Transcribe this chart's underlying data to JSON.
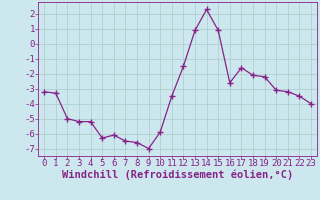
{
  "x": [
    0,
    1,
    2,
    3,
    4,
    5,
    6,
    7,
    8,
    9,
    10,
    11,
    12,
    13,
    14,
    15,
    16,
    17,
    18,
    19,
    20,
    21,
    22,
    23
  ],
  "y": [
    -3.2,
    -3.3,
    -5.0,
    -5.2,
    -5.2,
    -6.3,
    -6.1,
    -6.5,
    -6.6,
    -7.0,
    -5.9,
    -3.5,
    -1.5,
    0.9,
    2.3,
    0.9,
    -2.6,
    -1.6,
    -2.1,
    -2.2,
    -3.1,
    -3.2,
    -3.5,
    -4.0
  ],
  "line_color": "#882288",
  "marker": "+",
  "marker_size": 4,
  "bg_color": "#cce8ee",
  "grid_color": "#aaccc8",
  "xlabel": "Windchill (Refroidissement éolien,°C)",
  "xlabel_color": "#882288",
  "xlabel_fontsize": 7.5,
  "tick_color": "#882288",
  "tick_fontsize": 6.5,
  "ylim": [
    -7.5,
    2.8
  ],
  "xlim": [
    -0.5,
    23.5
  ],
  "yticks": [
    -7,
    -6,
    -5,
    -4,
    -3,
    -2,
    -1,
    0,
    1,
    2
  ],
  "xticks": [
    0,
    1,
    2,
    3,
    4,
    5,
    6,
    7,
    8,
    9,
    10,
    11,
    12,
    13,
    14,
    15,
    16,
    17,
    18,
    19,
    20,
    21,
    22,
    23
  ]
}
